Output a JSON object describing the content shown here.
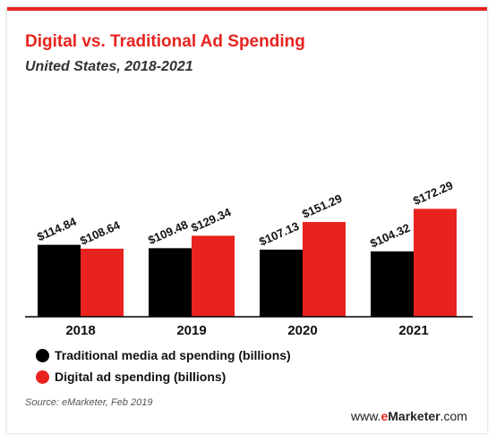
{
  "header": {
    "title": "Digital vs. Traditional Ad Spending",
    "subtitle": "United States, 2018-2021"
  },
  "colors": {
    "traditional": "#000000",
    "digital": "#e8231f",
    "accent": "#e8231f"
  },
  "chart_data": {
    "type": "bar",
    "title": "Digital vs. Traditional Ad Spending",
    "subtitle": "United States, 2018-2021",
    "categories": [
      "2018",
      "2019",
      "2020",
      "2021"
    ],
    "series": [
      {
        "name": "Traditional media ad spending (billions)",
        "values": [
          114.84,
          109.48,
          107.13,
          104.32
        ],
        "labels": [
          "$114.84",
          "$109.48",
          "$107.13",
          "$104.32"
        ]
      },
      {
        "name": "Digital ad spending (billions)",
        "values": [
          108.64,
          129.34,
          151.29,
          172.29
        ],
        "labels": [
          "$108.64",
          "$129.34",
          "$151.29",
          "$172.29"
        ]
      }
    ],
    "ylim": [
      0,
      180
    ],
    "grid": false,
    "legend_position": "bottom-left"
  },
  "legend": {
    "traditional": "Traditional media ad spending (billions)",
    "digital": "Digital ad spending (billions)"
  },
  "footer": {
    "source": "Source: eMarketer, Feb 2019",
    "brand_prefix": "www.",
    "brand_e": "e",
    "brand_main": "Marketer",
    "brand_suffix": ".com"
  }
}
